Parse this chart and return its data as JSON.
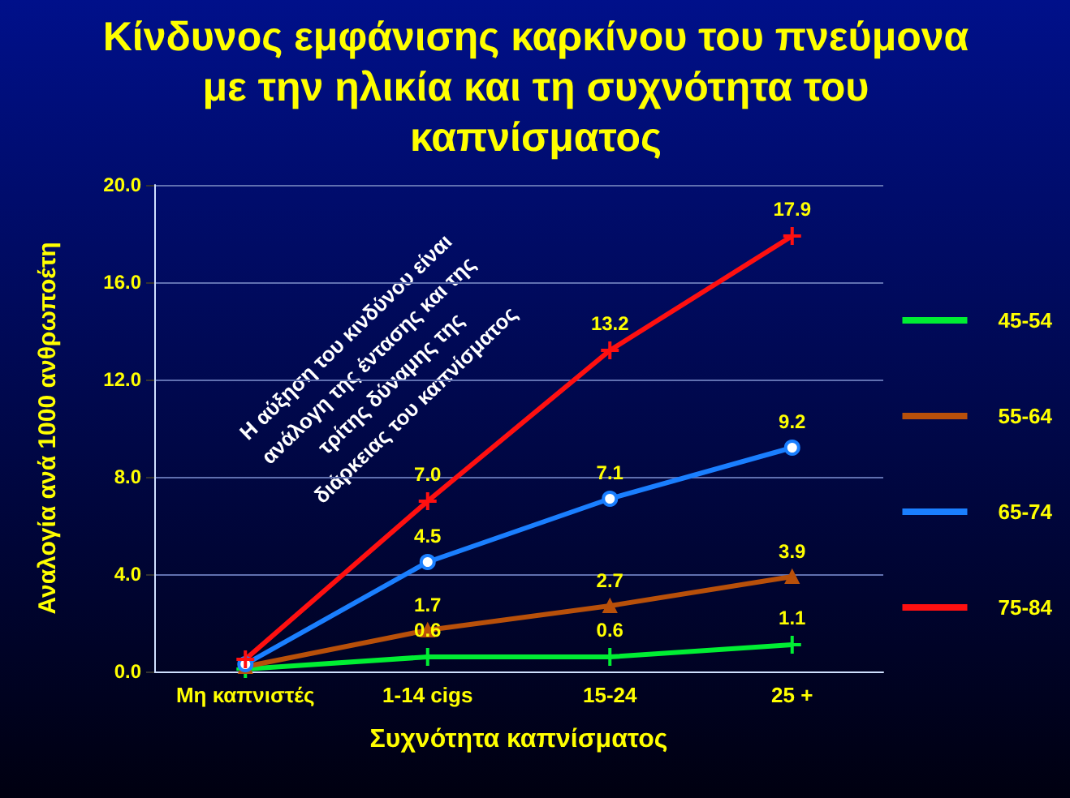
{
  "chart_data": {
    "type": "line",
    "title": "Κίνδυνος εμφάνισης καρκίνου του πνεύμονα με την ηλικία και τη συχνότητα του καπνίσματος",
    "xlabel": "Συχνότητα καπνίσματος",
    "ylabel": "Αναλογία ανά 1000 ανθρωποέτη",
    "categories": [
      "Μη καπνιστές",
      "1-14 cigs",
      "15-24",
      "25 +"
    ],
    "series": [
      {
        "name": "45-54",
        "color": "#00ee33",
        "marker": "cross",
        "values": [
          0.1,
          0.6,
          0.6,
          1.1
        ],
        "value_labels": [
          null,
          "0.6",
          "0.6",
          "1.1"
        ]
      },
      {
        "name": "55-64",
        "color": "#b8500a",
        "marker": "triangle",
        "values": [
          0.2,
          1.7,
          2.7,
          3.9
        ],
        "value_labels": [
          null,
          "1.7",
          "2.7",
          "3.9"
        ]
      },
      {
        "name": "65-74",
        "color": "#1a7fff",
        "marker": "circle",
        "values": [
          0.3,
          4.5,
          7.1,
          9.2
        ],
        "value_labels": [
          null,
          "4.5",
          "7.1",
          "9.2"
        ]
      },
      {
        "name": "75-84",
        "color": "#ff1010",
        "marker": "cross",
        "values": [
          0.5,
          7.0,
          13.2,
          17.9
        ],
        "value_labels": [
          null,
          "7.0",
          "13.2",
          "17.9"
        ]
      }
    ],
    "ylim": [
      0,
      20
    ],
    "yticks": [
      {
        "value": 0,
        "label": "0.0"
      },
      {
        "value": 4,
        "label": "4.0"
      },
      {
        "value": 8,
        "label": "8.0"
      },
      {
        "value": 12,
        "label": "12.0"
      },
      {
        "value": 16,
        "label": "16.0"
      },
      {
        "value": 20,
        "label": "20.0"
      }
    ],
    "grid": "y",
    "legend": "right",
    "annotations": [
      "Η αύξηση του κινδύνου είναι ανάλογη της έντασης και της τρίτης δύναμης της διάρκειας του καπνίσματος"
    ]
  }
}
